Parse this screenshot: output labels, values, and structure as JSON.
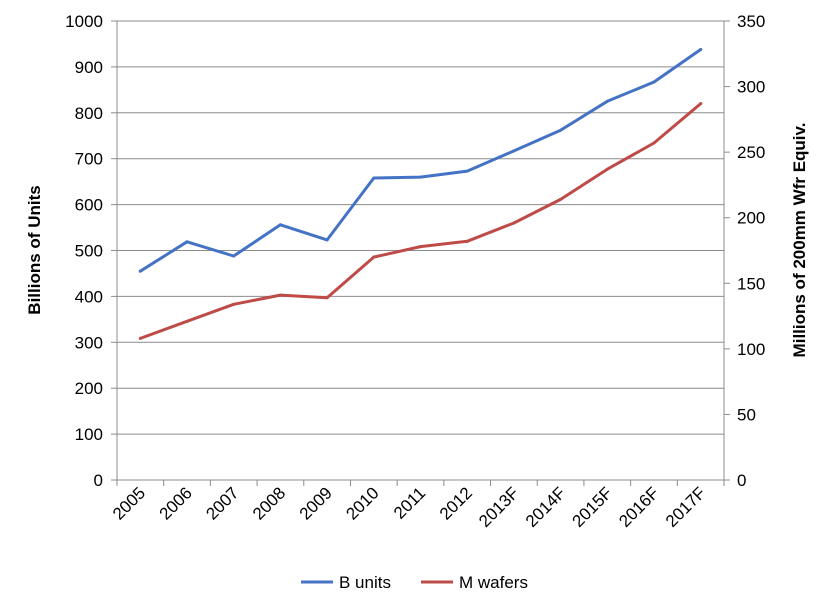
{
  "chart_data": {
    "type": "line",
    "categories": [
      "2005",
      "2006",
      "2007",
      "2008",
      "2009",
      "2010",
      "2011",
      "2012",
      "2013F",
      "2014F",
      "2015F",
      "2016F",
      "2017F"
    ],
    "series": [
      {
        "name": "B units",
        "axis": "left",
        "color": "#4472C4",
        "values": [
          455,
          519,
          488,
          556,
          523,
          658,
          660,
          673,
          717,
          762,
          825,
          867,
          938
        ]
      },
      {
        "name": "M wafers",
        "axis": "right",
        "color": "#BE4B48",
        "values": [
          108,
          121,
          134,
          141,
          139,
          170,
          178,
          182,
          196,
          214,
          237,
          257,
          287
        ]
      }
    ],
    "ylabel": "Billions of Units",
    "y2label": "Millions of 200mm Wfr Equiv.",
    "ylim": [
      0,
      1000
    ],
    "y2lim": [
      0,
      350
    ],
    "yticks": [
      "0",
      "100",
      "200",
      "300",
      "400",
      "500",
      "600",
      "700",
      "800",
      "900",
      "1000"
    ],
    "y2ticks": [
      "0",
      "50",
      "100",
      "150",
      "200",
      "250",
      "300",
      "350"
    ],
    "grid": true,
    "legend_position": "bottom"
  }
}
